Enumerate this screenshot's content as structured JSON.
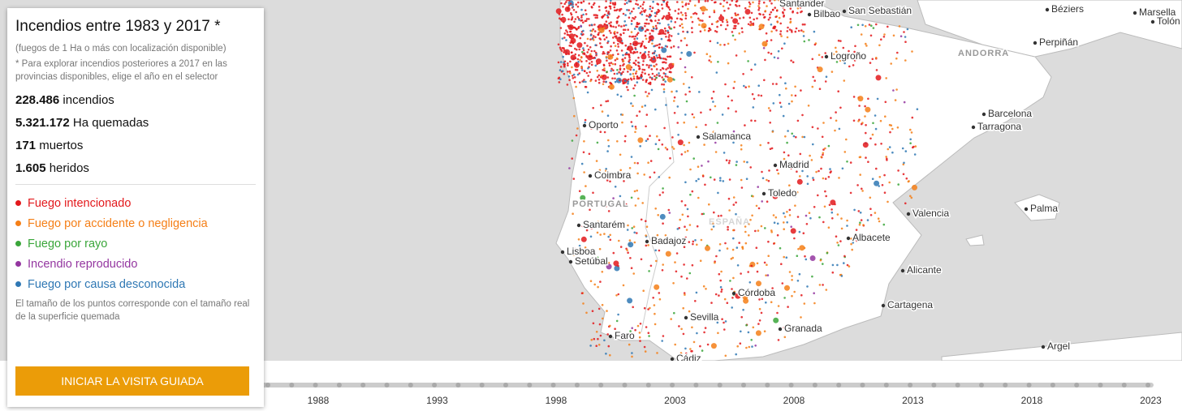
{
  "panel": {
    "title": "Incendios entre 1983 y 2017 *",
    "subtitle": "(fuegos de 1 Ha o más con localización disponible)",
    "note": "* Para explorar incendios posteriores a 2017 en las provincias disponibles, elige el año en el selector",
    "stats": [
      {
        "value": "228.486",
        "label": "incendios"
      },
      {
        "value": "5.321.172",
        "label": "Ha quemadas"
      },
      {
        "value": "171",
        "label": "muertos"
      },
      {
        "value": "1.605",
        "label": "heridos"
      }
    ],
    "legend": [
      {
        "label": "Fuego intencionado",
        "color": "#e3191c"
      },
      {
        "label": "Fuego por accidente o negligencia",
        "color": "#f57f17"
      },
      {
        "label": "Fuego por rayo",
        "color": "#3aa63a"
      },
      {
        "label": "Incendio reproducido",
        "color": "#9436a0"
      },
      {
        "label": "Fuego por causa desconocida",
        "color": "#2f78b4"
      }
    ],
    "size_note": "El tamaño de los puntos corresponde con el tamaño real de la superficie quemada",
    "button": "INICIAR LA VISITA GUIADA"
  },
  "map": {
    "places": [
      "Santander",
      "Bilbao",
      "San Sebastián",
      "Logroño",
      "Oporto",
      "Salamanca",
      "Madrid",
      "Coimbra",
      "Toledo",
      "Santarém",
      "Badajoz",
      "Lisboa",
      "Setúbal",
      "Córdoba",
      "Sevilla",
      "Faro",
      "Granada",
      "Cádiz",
      "Valencia",
      "Albacete",
      "Alicante",
      "Cartagena",
      "Barcelona",
      "Tarragona",
      "Palma",
      "Perpiñán",
      "Béziers",
      "Marsella",
      "Tolón",
      "Argel"
    ],
    "regions": [
      "PORTUGAL",
      "ANDORRA",
      "ESPAÑA"
    ]
  },
  "timeline": {
    "years": [
      "1988",
      "1993",
      "1998",
      "2003",
      "2008",
      "2013",
      "2018",
      "2023"
    ]
  }
}
